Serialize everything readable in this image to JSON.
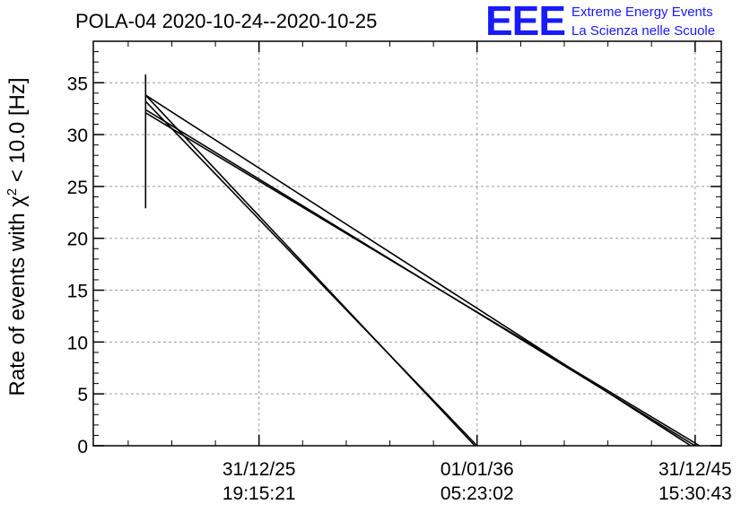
{
  "chart_data": {
    "type": "line",
    "title": "POLA-04 2020-10-24--2020-10-25",
    "ylabel_prefix": "Rate of events with ",
    "ylabel_chi": "χ",
    "ylabel_sup": "2",
    "ylabel_suffix": " < 10.0 [Hz]",
    "ylim": [
      0,
      39
    ],
    "yticks": [
      0,
      5,
      10,
      15,
      20,
      25,
      30,
      35
    ],
    "xlim": [
      -0.38,
      1.06
    ],
    "xticks": [
      {
        "pos": 0,
        "date": "31/12/25",
        "time": "19:15:21"
      },
      {
        "pos": 0.5,
        "date": "01/01/36",
        "time": "05:23:02"
      },
      {
        "pos": 1,
        "date": "31/12/45",
        "time": "15:30:43"
      }
    ],
    "grid": true,
    "color": "#000000",
    "series": [
      {
        "x": [
          -0.26,
          -0.26
        ],
        "y": [
          35.8,
          22.9
        ]
      },
      {
        "x": [
          -0.26,
          0.495
        ],
        "y": [
          33.8,
          0
        ]
      },
      {
        "x": [
          -0.26,
          0.5
        ],
        "y": [
          33.2,
          0
        ]
      },
      {
        "x": [
          -0.26,
          0.99
        ],
        "y": [
          33.8,
          0
        ]
      },
      {
        "x": [
          -0.26,
          1.0
        ],
        "y": [
          32.4,
          0
        ]
      },
      {
        "x": [
          -0.26,
          1.01
        ],
        "y": [
          32.1,
          0
        ]
      }
    ]
  },
  "logo": {
    "big": "EEE",
    "line1": "Extreme Energy Events",
    "line2": "La Scienza nelle Scuole",
    "color": "#1a1aff"
  }
}
